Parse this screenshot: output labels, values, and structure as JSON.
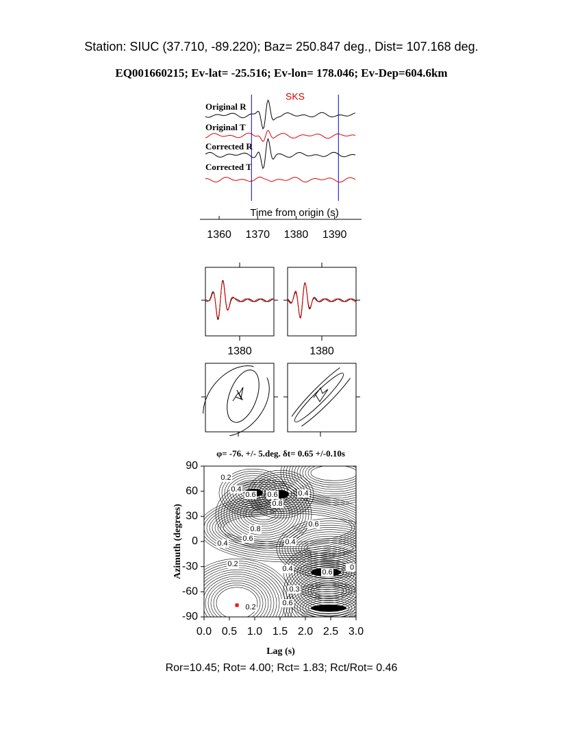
{
  "header": {
    "station": "Station: SIUC (37.710,  -89.220); Baz=  250.847 deg., Dist=  107.168 deg.",
    "event": "EQ001660215; Ev-lat= -25.516; Ev-lon= 178.046; Ev-Dep=604.6km"
  },
  "traces": {
    "phase": "SKS",
    "labels": [
      "Original R",
      "Original T",
      "Corrected R",
      "Corrected T"
    ],
    "xlabel": "Time from origin (s)",
    "xlim": [
      1355,
      1397
    ],
    "xticks": [
      1360,
      1370,
      1380,
      1390
    ],
    "window": [
      1368.4,
      1391
    ],
    "window_color": "#0000cc"
  },
  "particle": {
    "panels": [
      {
        "xlim": [
          1370,
          1390
        ],
        "xticks": [
          1380
        ]
      },
      {
        "xlim": [
          1370,
          1390
        ],
        "xticks": [
          1380
        ]
      }
    ]
  },
  "chart_data": {
    "type": "contour",
    "title": "φ= -76. +/- 5.deg. δt= 0.65 +/-0.10s",
    "xlabel": "Lag (s)",
    "ylabel": "Azimuth (degrees)",
    "xlim": [
      0,
      3
    ],
    "ylim": [
      -90,
      90
    ],
    "xticks": [
      {
        "value": 0,
        "label": "0.0"
      },
      0.5,
      {
        "value": 1,
        "label": "1.0"
      },
      1.5,
      {
        "value": 2,
        "label": "2.0"
      },
      2.5,
      {
        "value": 3,
        "label": "3.0"
      }
    ],
    "yticks": [
      -90,
      -60,
      -30,
      0,
      30,
      60,
      90
    ],
    "best": {
      "x": 0.65,
      "y": -76,
      "color": "#ff0000"
    },
    "contour_labels": [
      "0.2",
      "0.4",
      "0.6",
      "0.6",
      "0.4",
      "0.8",
      "0.8",
      "0.6",
      "0.6",
      "0.4",
      "0.4",
      "0.2",
      "0.4",
      "0.6",
      "0",
      "0.3",
      "0.6",
      "0.2"
    ]
  },
  "footer": "Ror=10.45; Rot= 4.00; Rct= 1.83; Rct/Rot= 0.46"
}
